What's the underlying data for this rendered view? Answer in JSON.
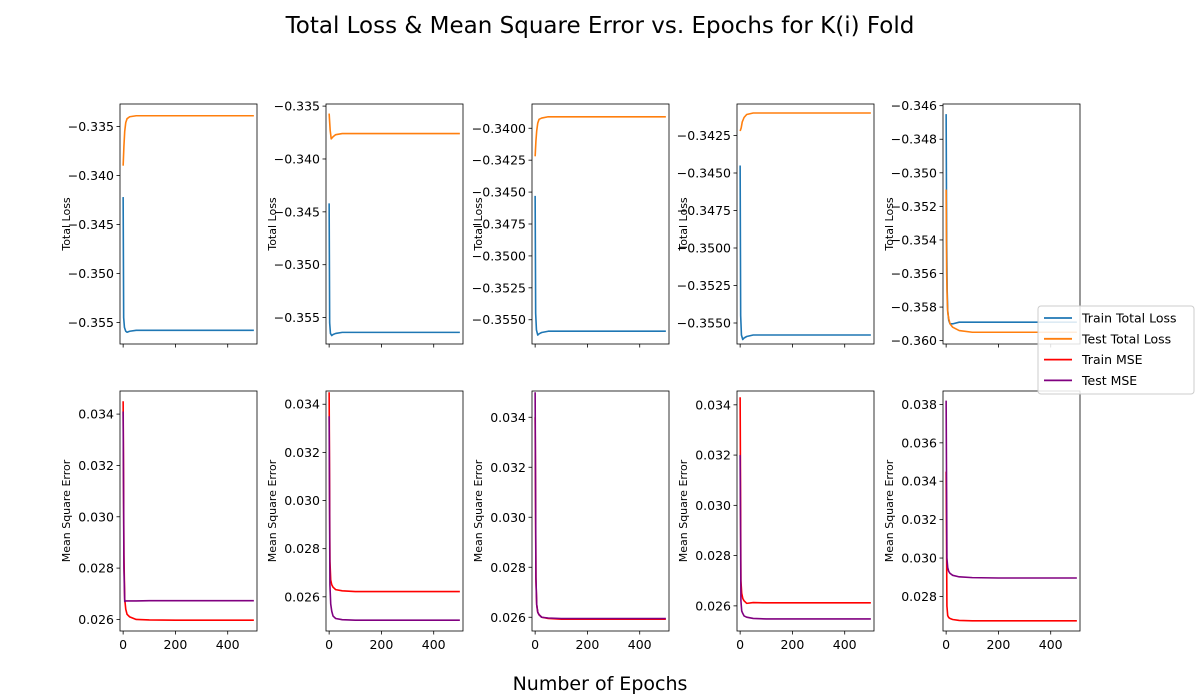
{
  "figure": {
    "title": "Total Loss & Mean Square Error vs. Epochs for K(i) Fold",
    "xlabel": "Number of Epochs"
  },
  "legend": {
    "placement": "right",
    "entries": [
      {
        "label": "Train Total Loss",
        "color": "#1f77b4"
      },
      {
        "label": "Test Total Loss",
        "color": "#ff7f0e"
      },
      {
        "label": "Train MSE",
        "color": "#ff0000"
      },
      {
        "label": "Test MSE",
        "color": "#800080"
      }
    ]
  },
  "chart_data": [
    {
      "type": "line",
      "row": "loss",
      "fold": 1,
      "ylabel": "Total Loss",
      "xlim": [
        -12,
        512
      ],
      "ylim": [
        -0.3572,
        -0.3327
      ],
      "yticks": [
        -0.355,
        -0.35,
        -0.345,
        -0.34,
        -0.335
      ],
      "ytick_labels": [
        "−0.355",
        "−0.350",
        "−0.345",
        "−0.340",
        "−0.335"
      ],
      "series": [
        {
          "name": "Train Total Loss",
          "color": "#1f77b4",
          "x": [
            0,
            2,
            5,
            10,
            15,
            25,
            50,
            100,
            200,
            300,
            500
          ],
          "y": [
            -0.3422,
            -0.3545,
            -0.3555,
            -0.3559,
            -0.356,
            -0.3559,
            -0.3558,
            -0.3558,
            -0.3558,
            -0.3558,
            -0.3558
          ]
        },
        {
          "name": "Test Total Loss",
          "color": "#ff7f0e",
          "x": [
            0,
            3,
            6,
            10,
            15,
            25,
            50,
            100,
            200,
            300,
            500
          ],
          "y": [
            -0.339,
            -0.337,
            -0.3355,
            -0.3346,
            -0.3342,
            -0.334,
            -0.3339,
            -0.3339,
            -0.3339,
            -0.3339,
            -0.3339
          ]
        }
      ]
    },
    {
      "type": "line",
      "row": "loss",
      "fold": 2,
      "ylabel": "Total Loss",
      "xlim": [
        -12,
        512
      ],
      "ylim": [
        -0.3575,
        -0.3348
      ],
      "yticks": [
        -0.355,
        -0.35,
        -0.345,
        -0.34,
        -0.335
      ],
      "ytick_labels": [
        "−0.355",
        "−0.350",
        "−0.345",
        "−0.340",
        "−0.335"
      ],
      "series": [
        {
          "name": "Train Total Loss",
          "color": "#1f77b4",
          "x": [
            0,
            2,
            5,
            10,
            15,
            25,
            50,
            100,
            200,
            300,
            500
          ],
          "y": [
            -0.3442,
            -0.3555,
            -0.3565,
            -0.3567,
            -0.3566,
            -0.3565,
            -0.3564,
            -0.3564,
            -0.3564,
            -0.3564,
            -0.3564
          ]
        },
        {
          "name": "Test Total Loss",
          "color": "#ff7f0e",
          "x": [
            0,
            4,
            8,
            15,
            25,
            50,
            100,
            200,
            300,
            500
          ],
          "y": [
            -0.3357,
            -0.3373,
            -0.3381,
            -0.3379,
            -0.3377,
            -0.3376,
            -0.3376,
            -0.3376,
            -0.3376,
            -0.3376
          ]
        }
      ]
    },
    {
      "type": "line",
      "row": "loss",
      "fold": 3,
      "ylabel": "Total Loss",
      "xlim": [
        -12,
        512
      ],
      "ylim": [
        -0.3569,
        -0.3381
      ],
      "yticks": [
        -0.355,
        -0.3525,
        -0.35,
        -0.3475,
        -0.345,
        -0.3425,
        -0.34
      ],
      "ytick_labels": [
        "−0.3550",
        "−0.3525",
        "−0.3500",
        "−0.3475",
        "−0.3450",
        "−0.3425",
        "−0.3400"
      ],
      "series": [
        {
          "name": "Train Total Loss",
          "color": "#1f77b4",
          "x": [
            0,
            2,
            5,
            10,
            15,
            25,
            50,
            100,
            200,
            300,
            500
          ],
          "y": [
            -0.3453,
            -0.3545,
            -0.3558,
            -0.3562,
            -0.3561,
            -0.356,
            -0.3559,
            -0.3559,
            -0.3559,
            -0.3559,
            -0.3559
          ]
        },
        {
          "name": "Test Total Loss",
          "color": "#ff7f0e",
          "x": [
            0,
            3,
            6,
            10,
            15,
            25,
            50,
            100,
            200,
            300,
            500
          ],
          "y": [
            -0.3422,
            -0.341,
            -0.3402,
            -0.3396,
            -0.3393,
            -0.3392,
            -0.3391,
            -0.3391,
            -0.3391,
            -0.3391,
            -0.3391
          ]
        }
      ]
    },
    {
      "type": "line",
      "row": "loss",
      "fold": 4,
      "ylabel": "Total Loss",
      "xlim": [
        -12,
        512
      ],
      "ylim": [
        -0.3564,
        -0.3404
      ],
      "yticks": [
        -0.355,
        -0.3525,
        -0.35,
        -0.3475,
        -0.345,
        -0.3425
      ],
      "ytick_labels": [
        "−0.3550",
        "−0.3525",
        "−0.3500",
        "−0.3475",
        "−0.3450",
        "−0.3425"
      ],
      "series": [
        {
          "name": "Train Total Loss",
          "color": "#1f77b4",
          "x": [
            0,
            2,
            5,
            10,
            15,
            25,
            50,
            100,
            200,
            300,
            500
          ],
          "y": [
            -0.3445,
            -0.3545,
            -0.3558,
            -0.3561,
            -0.356,
            -0.3559,
            -0.3558,
            -0.3558,
            -0.3558,
            -0.3558,
            -0.3558
          ]
        },
        {
          "name": "Test Total Loss",
          "color": "#ff7f0e",
          "x": [
            0,
            4,
            8,
            15,
            25,
            50,
            100,
            200,
            300,
            500
          ],
          "y": [
            -0.3422,
            -0.342,
            -0.3416,
            -0.3413,
            -0.3411,
            -0.341,
            -0.341,
            -0.341,
            -0.341,
            -0.341
          ]
        }
      ]
    },
    {
      "type": "line",
      "row": "loss",
      "fold": 5,
      "ylabel": "Total Loss",
      "xlim": [
        -12,
        512
      ],
      "ylim": [
        -0.3602,
        -0.3459
      ],
      "yticks": [
        -0.36,
        -0.358,
        -0.356,
        -0.354,
        -0.352,
        -0.35,
        -0.348,
        -0.346
      ],
      "ytick_labels": [
        "−0.360",
        "−0.358",
        "−0.356",
        "−0.354",
        "−0.352",
        "−0.350",
        "−0.348",
        "−0.346"
      ],
      "series": [
        {
          "name": "Train Total Loss",
          "color": "#1f77b4",
          "x": [
            0,
            2,
            4,
            6,
            10,
            15,
            25,
            50,
            100,
            200,
            300,
            500
          ],
          "y": [
            -0.3465,
            -0.354,
            -0.357,
            -0.3582,
            -0.3588,
            -0.359,
            -0.359,
            -0.3589,
            -0.3589,
            -0.3589,
            -0.3589,
            -0.3589
          ]
        },
        {
          "name": "Test Total Loss",
          "color": "#ff7f0e",
          "x": [
            0,
            2,
            4,
            6,
            10,
            15,
            25,
            50,
            100,
            200,
            300,
            500
          ],
          "y": [
            -0.351,
            -0.356,
            -0.3575,
            -0.3583,
            -0.3587,
            -0.359,
            -0.3592,
            -0.3594,
            -0.3595,
            -0.3595,
            -0.3595,
            -0.3595
          ]
        }
      ]
    },
    {
      "type": "line",
      "row": "mse",
      "fold": 1,
      "ylabel": "Mean Square Error",
      "xlim": [
        -12,
        512
      ],
      "ylim": [
        0.02555,
        0.0349
      ],
      "yticks": [
        0.026,
        0.028,
        0.03,
        0.032,
        0.034
      ],
      "ytick_labels": [
        "0.026",
        "0.028",
        "0.030",
        "0.032",
        "0.034"
      ],
      "series": [
        {
          "name": "Train MSE",
          "color": "#ff0000",
          "x": [
            0,
            3,
            6,
            10,
            15,
            25,
            50,
            100,
            200,
            300,
            500
          ],
          "y": [
            0.0345,
            0.0285,
            0.0268,
            0.0264,
            0.0262,
            0.0261,
            0.026,
            0.02598,
            0.02597,
            0.02597,
            0.02597
          ]
        },
        {
          "name": "Test MSE",
          "color": "#800080",
          "x": [
            0,
            3,
            6,
            10,
            15,
            25,
            50,
            100,
            200,
            300,
            500
          ],
          "y": [
            0.0341,
            0.028,
            0.0267,
            0.02672,
            0.02672,
            0.02672,
            0.02672,
            0.02673,
            0.02673,
            0.02673,
            0.02673
          ]
        }
      ]
    },
    {
      "type": "line",
      "row": "mse",
      "fold": 2,
      "ylabel": "Mean Square Error",
      "xlim": [
        -12,
        512
      ],
      "ylim": [
        0.02458,
        0.03455
      ],
      "yticks": [
        0.026,
        0.028,
        0.03,
        0.032,
        0.034
      ],
      "ytick_labels": [
        "0.026",
        "0.028",
        "0.030",
        "0.032",
        "0.034"
      ],
      "series": [
        {
          "name": "Train MSE",
          "color": "#ff0000",
          "x": [
            0,
            3,
            6,
            10,
            15,
            25,
            50,
            100,
            200,
            300,
            500
          ],
          "y": [
            0.0345,
            0.0275,
            0.0267,
            0.0265,
            0.0264,
            0.0263,
            0.02625,
            0.02622,
            0.02622,
            0.02622,
            0.02622
          ]
        },
        {
          "name": "Test MSE",
          "color": "#800080",
          "x": [
            0,
            3,
            6,
            10,
            15,
            25,
            50,
            100,
            200,
            300,
            500
          ],
          "y": [
            0.0335,
            0.0265,
            0.0257,
            0.0254,
            0.0252,
            0.0251,
            0.02505,
            0.02503,
            0.02503,
            0.02503,
            0.02503
          ]
        }
      ]
    },
    {
      "type": "line",
      "row": "mse",
      "fold": 3,
      "ylabel": "Mean Square Error",
      "xlim": [
        -12,
        512
      ],
      "ylim": [
        0.02545,
        0.03505
      ],
      "yticks": [
        0.026,
        0.028,
        0.03,
        0.032,
        0.034
      ],
      "ytick_labels": [
        "0.026",
        "0.028",
        "0.030",
        "0.032",
        "0.034"
      ],
      "series": [
        {
          "name": "Train MSE",
          "color": "#ff0000",
          "x": [
            0,
            3,
            6,
            10,
            15,
            25,
            50,
            100,
            200,
            300,
            500
          ],
          "y": [
            0.034,
            0.0275,
            0.0265,
            0.0262,
            0.0261,
            0.026,
            0.02595,
            0.02592,
            0.02592,
            0.02592,
            0.02592
          ]
        },
        {
          "name": "Test MSE",
          "color": "#800080",
          "x": [
            0,
            3,
            6,
            10,
            15,
            25,
            50,
            100,
            200,
            300,
            500
          ],
          "y": [
            0.035,
            0.0276,
            0.0265,
            0.0262,
            0.0261,
            0.026,
            0.02597,
            0.02595,
            0.02595,
            0.02595,
            0.02595
          ]
        }
      ]
    },
    {
      "type": "line",
      "row": "mse",
      "fold": 4,
      "ylabel": "Mean Square Error",
      "xlim": [
        -12,
        512
      ],
      "ylim": [
        0.025,
        0.03455
      ],
      "yticks": [
        0.026,
        0.028,
        0.03,
        0.032,
        0.034
      ],
      "ytick_labels": [
        "0.026",
        "0.028",
        "0.030",
        "0.032",
        "0.034"
      ],
      "series": [
        {
          "name": "Train MSE",
          "color": "#ff0000",
          "x": [
            0,
            3,
            6,
            10,
            15,
            25,
            50,
            100,
            200,
            300,
            500
          ],
          "y": [
            0.0343,
            0.027,
            0.0265,
            0.0263,
            0.0262,
            0.0261,
            0.02613,
            0.02612,
            0.02612,
            0.02612,
            0.02612
          ]
        },
        {
          "name": "Test MSE",
          "color": "#800080",
          "x": [
            0,
            3,
            6,
            10,
            15,
            25,
            50,
            100,
            200,
            300,
            500
          ],
          "y": [
            0.032,
            0.0262,
            0.0258,
            0.0257,
            0.0256,
            0.02555,
            0.0255,
            0.02548,
            0.02548,
            0.02548,
            0.02548
          ]
        }
      ]
    },
    {
      "type": "line",
      "row": "mse",
      "fold": 5,
      "ylabel": "Mean Square Error",
      "xlim": [
        -12,
        512
      ],
      "ylim": [
        0.0262,
        0.0387
      ],
      "yticks": [
        0.028,
        0.03,
        0.032,
        0.034,
        0.036,
        0.038
      ],
      "ytick_labels": [
        "0.028",
        "0.030",
        "0.032",
        "0.034",
        "0.036",
        "0.038"
      ],
      "series": [
        {
          "name": "Train MSE",
          "color": "#ff0000",
          "x": [
            0,
            3,
            6,
            10,
            15,
            25,
            50,
            100,
            200,
            300,
            500
          ],
          "y": [
            0.0345,
            0.0275,
            0.027,
            0.0269,
            0.02685,
            0.0268,
            0.02675,
            0.02673,
            0.02673,
            0.02673,
            0.02673
          ]
        },
        {
          "name": "Test MSE",
          "color": "#800080",
          "x": [
            0,
            3,
            6,
            10,
            15,
            25,
            50,
            100,
            200,
            300,
            500
          ],
          "y": [
            0.0382,
            0.03,
            0.0295,
            0.0293,
            0.0292,
            0.0291,
            0.02902,
            0.02898,
            0.02896,
            0.02896,
            0.02896
          ]
        }
      ]
    }
  ]
}
